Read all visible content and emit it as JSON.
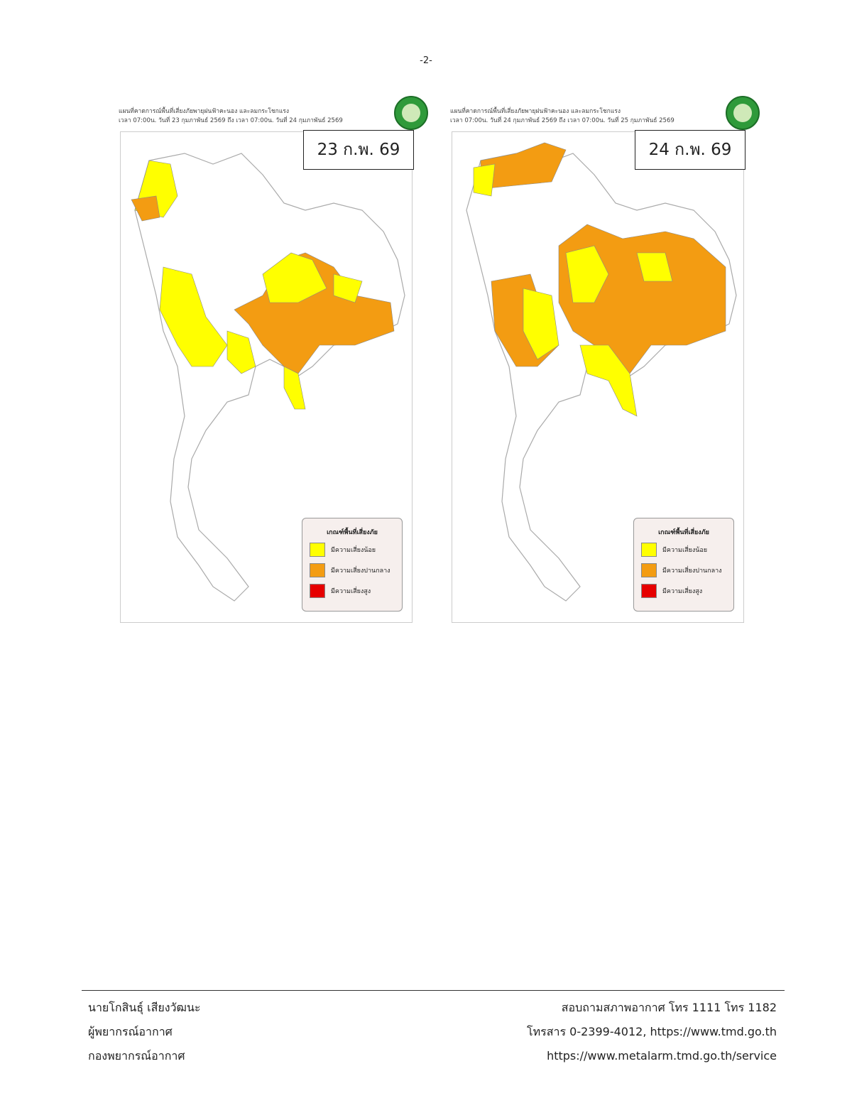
{
  "page_number": "-2-",
  "maps": [
    {
      "title": "แผนที่คาดการณ์พื้นที่เสี่ยงภัยพายุฝนฟ้าคะนอง และลมกระโชกแรง",
      "period": "เวลา 07:00น. วันที่ 23 กุมภาพันธ์ 2569 ถึง เวลา 07:00น. วันที่ 24 กุมภาพันธ์ 2569",
      "date_label": "23 ก.พ. 69"
    },
    {
      "title": "แผนที่คาดการณ์พื้นที่เสี่ยงภัยพายุฝนฟ้าคะนอง และลมกระโชกแรง",
      "period": "เวลา 07:00น. วันที่ 24 กุมภาพันธ์ 2569 ถึง เวลา 07:00น. วันที่ 25 กุมภาพันธ์ 2569",
      "date_label": "24 ก.พ. 69"
    }
  ],
  "legend": {
    "title": "เกณฑ์พื้นที่เสี่ยงภัย",
    "items": [
      {
        "label": "มีความเสี่ยงน้อย",
        "color": "#ffff00"
      },
      {
        "label": "มีความเสี่ยงปานกลาง",
        "color": "#f39c12"
      },
      {
        "label": "มีความเสี่ยงสูง",
        "color": "#e60000"
      }
    ]
  },
  "footer": {
    "left": [
      "นายโกสินธุ์ เสียงวัฒนะ",
      "ผู้พยากรณ์อากาศ",
      "กองพยากรณ์อากาศ"
    ],
    "right": [
      "สอบถามสภาพอากาศ โทร 1111 โทร 1182",
      "โทรสาร 0-2399-4012, https://www.tmd.go.th",
      "https://www.metalarm.tmd.go.th/service"
    ]
  }
}
